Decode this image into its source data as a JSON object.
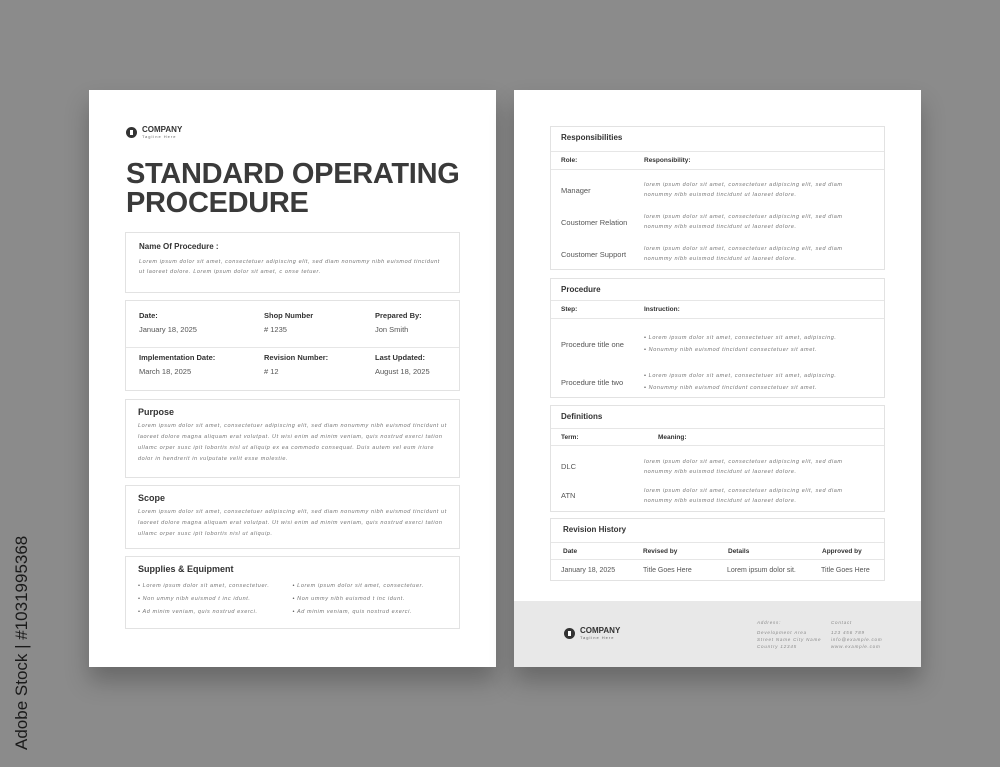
{
  "watermark": "Adobe Stock | #1031995368",
  "company": {
    "name": "COMPANY",
    "tagline": "Tagline Here"
  },
  "title_line1": "STANDARD OPERATING",
  "title_line2": "PROCEDURE",
  "name_of_procedure": {
    "label": "Name Of Procedure :",
    "text": "Lorem ipsum dolor sit amet, consectetuer adipiscing elit, sed diam nonummy nibh euismod tincidunt ut laoreet dolore. Lorem ipsum dolor sit amet, c onse tetuer."
  },
  "info": [
    {
      "label": "Date:",
      "value": "January 18, 2025"
    },
    {
      "label": "Shop Number",
      "value": "# 1235"
    },
    {
      "label": "Prepared By:",
      "value": "Jon Smith"
    },
    {
      "label": "Implementation Date:",
      "value": "March 18, 2025"
    },
    {
      "label": "Revision Number:",
      "value": "# 12"
    },
    {
      "label": "Last Updated:",
      "value": "August 18, 2025"
    }
  ],
  "purpose": {
    "label": "Purpose",
    "text": "Lorem ipsum dolor sit amet, consectetuer adipiscing elit, sed diam nonummy nibh euismod tincidunt ut laoreet dolore magna aliquam erat volutpat. Ut wisi enim ad minim veniam, quis nostrud exerci tation ullamc orper susc ipit lobortis nisl ut aliquip ex ea commodo consequat. Duis autem vel eum iriure dolor in hendrerit in vulputate velit esse molestie."
  },
  "scope": {
    "label": "Scope",
    "text": "Lorem ipsum dolor sit amet, consectetuer adipiscing elit, sed diam nonummy nibh euismod tincidunt ut laoreet dolore magna aliquam erat volutpat. Ut wisi enim ad minim veniam, quis nostrud exerci tation ullamc orper susc ipit lobortis nisl ut aliquip."
  },
  "supplies": {
    "label": "Supplies & Equipment",
    "items": [
      "Lorem ipsum dolor sit amet, consectetuer.",
      "Lorem ipsum dolor sit amet, consectetuer.",
      "Non ummy nibh euismod t inc idunt.",
      "Non ummy nibh euismod t inc idunt.",
      "Ad minim veniam, quis nostrud exerci.",
      "Ad minim veniam, quis nostrud exerci."
    ]
  },
  "responsibilities": {
    "label": "Responsibilities",
    "col1": "Role:",
    "col2": "Responsibility:",
    "rows": [
      {
        "role": "Manager",
        "text": "lorem ipsum dolor sit amet, consectetuer adipiscing elit, sed diam nonummy nibh euismod tincidunt ut laoreet dolore."
      },
      {
        "role": "Coustomer Relation",
        "text": "lorem ipsum dolor sit amet, consectetuer adipiscing elit, sed diam nonummy nibh euismod tincidunt ut laoreet dolore."
      },
      {
        "role": "Coustomer Support",
        "text": "lorem ipsum dolor sit amet, consectetuer adipiscing elit, sed diam nonummy nibh euismod tincidunt ut laoreet dolore."
      }
    ]
  },
  "procedure": {
    "label": "Procedure",
    "col1": "Step:",
    "col2": "Instruction:",
    "rows": [
      {
        "step": "Procedure title one",
        "items": [
          "Lorem ipsum dolor sit amet, consectetuer sit amet, adipiscing.",
          "Nonummy nibh euismod tincidunt consectetuer sit amet."
        ]
      },
      {
        "step": "Procedure title two",
        "items": [
          "Lorem ipsum dolor sit amet, consectetuer sit amet, adipiscing.",
          "Nonummy nibh euismod tincidunt consectetuer sit amet."
        ]
      }
    ]
  },
  "definitions": {
    "label": "Definitions",
    "col1": "Term:",
    "col2": "Meaning:",
    "rows": [
      {
        "term": "DLC",
        "text": "lorem ipsum dolor sit amet, consectetuer adipiscing elit, sed diam nonummy nibh euismod tincidunt ut laoreet dolore."
      },
      {
        "term": "ATN",
        "text": "lorem ipsum dolor sit amet, consectetuer adipiscing elit, sed diam nonummy nibh euismod tincidunt ut laoreet dolore."
      }
    ]
  },
  "revision": {
    "label": "Revision History",
    "headers": [
      "Date",
      "Revised by",
      "Details",
      "Approved by"
    ],
    "row": [
      "January 18, 2025",
      "Title Goes Here",
      "Lorem ipsum dolor sit.",
      "Title Goes Here"
    ]
  },
  "footer": {
    "address_label": "Address:",
    "address": [
      "Development Area",
      "Street Name City Name",
      "Country 12345"
    ],
    "contact_label": "Contact",
    "contact": [
      "123 456 789",
      "info@example.com",
      "www.example.com"
    ]
  }
}
